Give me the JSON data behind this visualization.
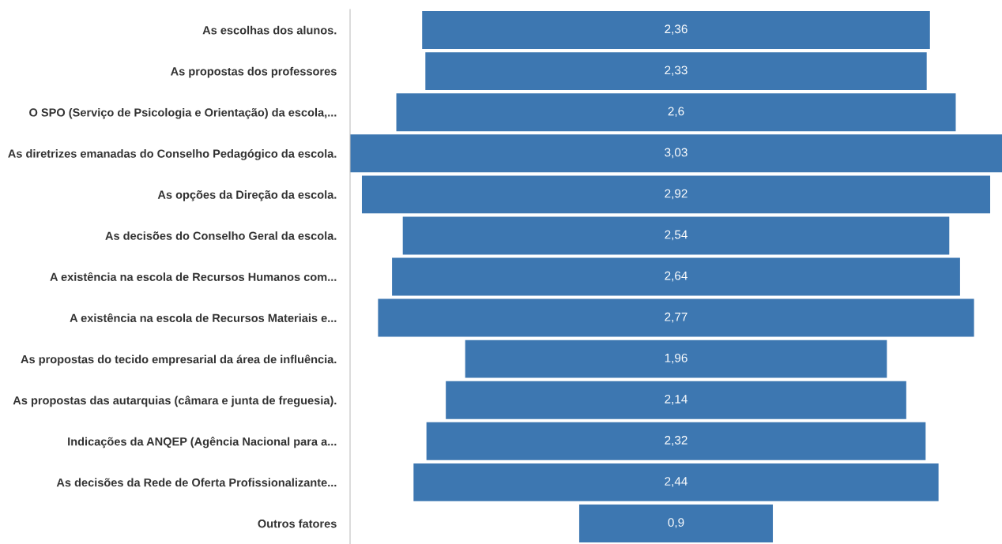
{
  "chart_data": {
    "type": "other",
    "categories": [
      "As escolhas dos alunos.",
      "As propostas dos professores",
      "O SPO (Serviço de Psicologia e Orientação) da escola,...",
      "As diretrizes emanadas do Conselho Pedagógico da escola.",
      "As opções da Direção da escola.",
      "As decisões do Conselho Geral da escola.",
      "A existência na escola de Recursos Humanos com...",
      "A existência na escola de Recursos Materiais e...",
      "As propostas do tecido empresarial da área de influência.",
      "As propostas das autarquias (câmara e junta de freguesia).",
      "Indicações da ANQEP (Agência Nacional para a...",
      "As decisões da Rede de Oferta Profissionalizante...",
      "Outros fatores"
    ],
    "values": [
      2.36,
      2.33,
      2.6,
      3.03,
      2.92,
      2.54,
      2.64,
      2.77,
      1.96,
      2.14,
      2.32,
      2.44,
      0.9
    ],
    "value_labels": [
      "2,36",
      "2,33",
      "2,6",
      "3,03",
      "2,92",
      "2,54",
      "2,64",
      "2,77",
      "1,96",
      "2,14",
      "2,32",
      "2,44",
      "0,9"
    ],
    "color": "#3d77b1"
  }
}
